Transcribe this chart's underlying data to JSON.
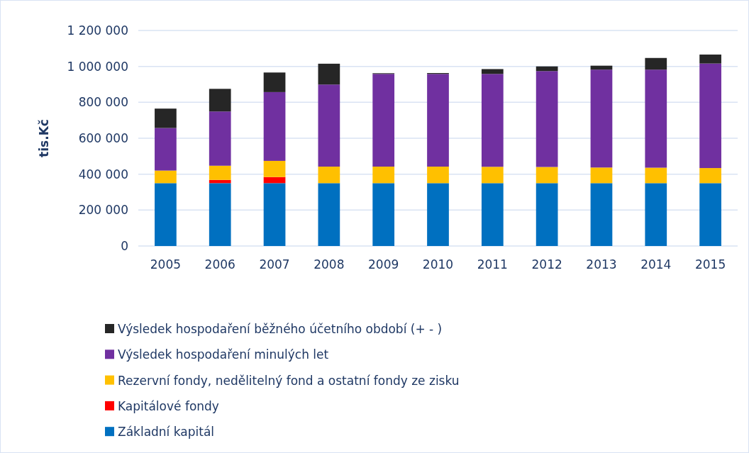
{
  "chart_data": {
    "type": "bar",
    "stacked": true,
    "ylabel": "tis.Kč",
    "categories": [
      "2005",
      "2006",
      "2007",
      "2008",
      "2009",
      "2010",
      "2011",
      "2012",
      "2013",
      "2014",
      "2015"
    ],
    "series": [
      {
        "name": "Základní kapitál",
        "color": "#0070c0",
        "values": [
          350000,
          350000,
          350000,
          350000,
          350000,
          350000,
          350000,
          350000,
          350000,
          350000,
          350000
        ]
      },
      {
        "name": "Kapitálové fondy",
        "color": "#ff0000",
        "values": [
          0,
          18000,
          34000,
          0,
          0,
          0,
          0,
          0,
          0,
          0,
          0
        ]
      },
      {
        "name": "Rezervní fondy, nedělitelný fond a ostatní fondy ze zisku",
        "color": "#ffc000",
        "values": [
          70000,
          79000,
          90000,
          92000,
          92000,
          92000,
          91000,
          90000,
          87000,
          86000,
          84000
        ]
      },
      {
        "name": "Výsledek hospodaření minulých let",
        "color": "#7030a0",
        "values": [
          237000,
          302000,
          383000,
          457000,
          516000,
          516000,
          517000,
          534000,
          545000,
          546000,
          582000
        ]
      },
      {
        "name": "Výsledek hospodaření běžného účetního období (+ - )",
        "color": "#262626",
        "values": [
          108000,
          126000,
          109000,
          116000,
          4000,
          5000,
          27000,
          26000,
          22000,
          65000,
          50000
        ]
      }
    ],
    "ylim": [
      0,
      1200000
    ],
    "yticks": [
      {
        "value": 0,
        "label": "0"
      },
      {
        "value": 200000,
        "label": "200 000"
      },
      {
        "value": 400000,
        "label": "400 000"
      },
      {
        "value": 600000,
        "label": "600 000"
      },
      {
        "value": 800000,
        "label": "800 000"
      },
      {
        "value": 1000000,
        "label": "1 000 000"
      },
      {
        "value": 1200000,
        "label": "1 200 000"
      }
    ],
    "grid": "y",
    "legend": "bottom"
  }
}
